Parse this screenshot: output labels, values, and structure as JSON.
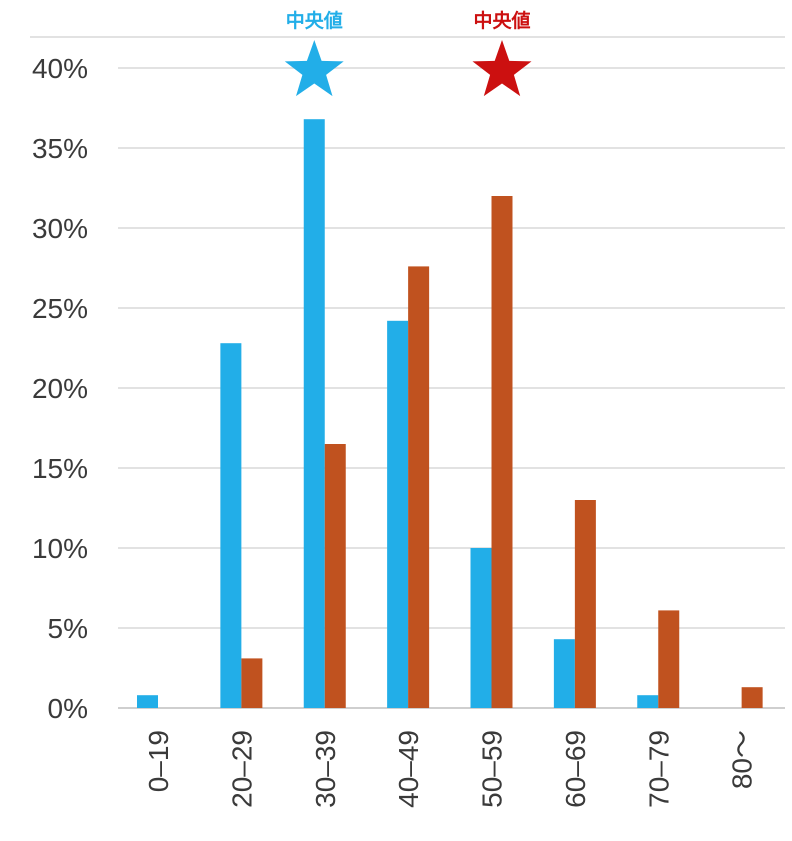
{
  "chart_data": {
    "type": "bar",
    "title": "",
    "xlabel": "",
    "ylabel": "",
    "categories": [
      "0–19",
      "20–29",
      "30–39",
      "40–49",
      "50–59",
      "60–69",
      "70–79",
      "80～"
    ],
    "series": [
      {
        "color": "#22aee8",
        "values": [
          0.8,
          22.8,
          36.8,
          24.2,
          10.0,
          4.3,
          0.8,
          0.0
        ]
      },
      {
        "color": "#c0521f",
        "values": [
          0.0,
          3.1,
          16.5,
          27.6,
          32.0,
          13.0,
          6.1,
          1.3
        ]
      }
    ],
    "ylim": [
      0,
      40
    ],
    "yticks": [
      0,
      5,
      10,
      15,
      20,
      25,
      30,
      35,
      40
    ],
    "ytick_labels": [
      "0%",
      "5%",
      "10%",
      "15%",
      "20%",
      "25%",
      "30%",
      "35%",
      "40%"
    ],
    "grid": true,
    "annotations": [
      {
        "text": "中央値",
        "category": "30–39",
        "series_index": 0,
        "color": "#22aee8",
        "marker": "star"
      },
      {
        "text": "中央値",
        "category": "50–59",
        "series_index": 1,
        "color": "#cc1010",
        "marker": "star"
      }
    ]
  }
}
